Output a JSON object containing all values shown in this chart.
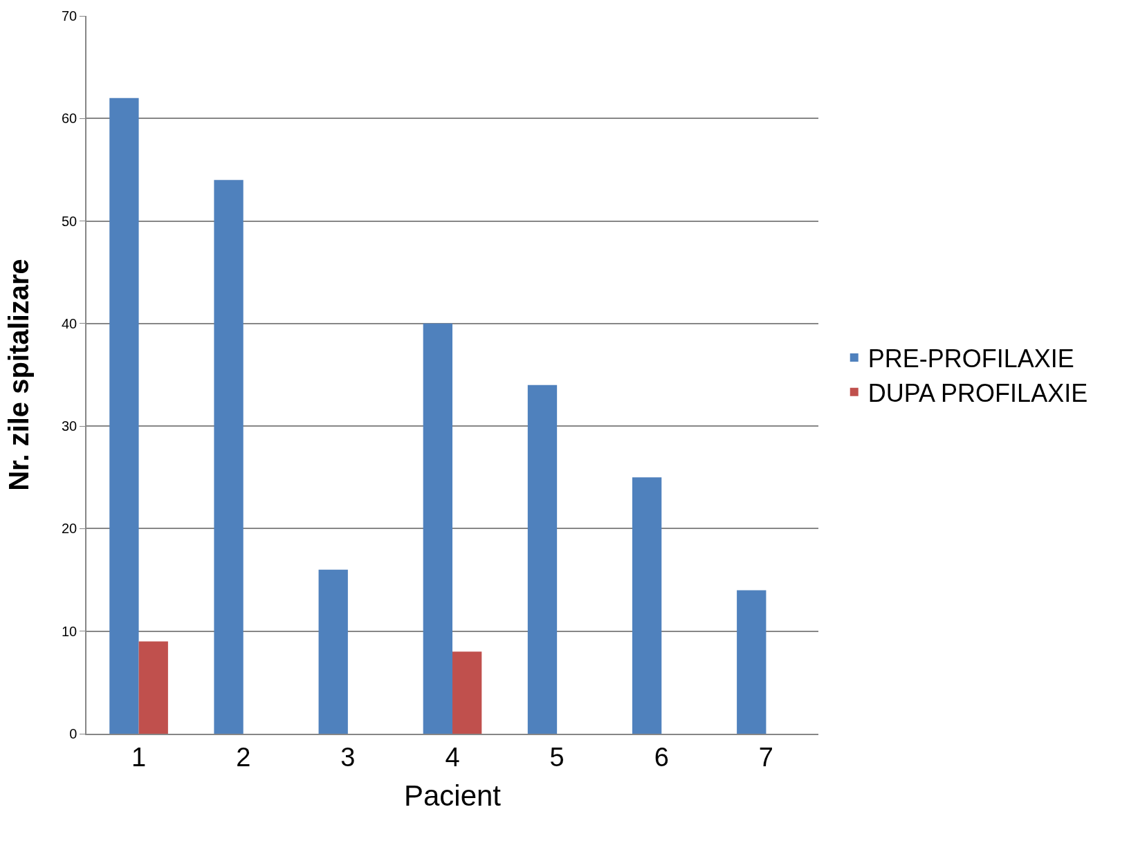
{
  "chart_data": {
    "type": "bar",
    "xlabel": "Pacient",
    "ylabel": "Nr. zile spitalizare",
    "categories": [
      "1",
      "2",
      "3",
      "4",
      "5",
      "6",
      "7"
    ],
    "series": [
      {
        "name": "PRE-PROFILAXIE",
        "color": "#4f81bd",
        "values": [
          62,
          54,
          16,
          40,
          34,
          25,
          14
        ]
      },
      {
        "name": "DUPA PROFILAXIE",
        "color": "#c0504d",
        "values": [
          9,
          null,
          null,
          8,
          null,
          null,
          null
        ]
      }
    ],
    "ylim": [
      0,
      70
    ],
    "yticks": [
      0,
      10,
      20,
      30,
      40,
      50,
      60,
      70
    ],
    "grid": "y",
    "legend": "right"
  }
}
